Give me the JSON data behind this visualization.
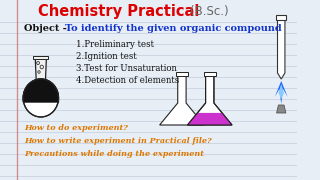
{
  "bg_color": "#e8eef5",
  "line_color": "#a8b8cc",
  "title_red": "Chemistry Practical",
  "title_bsc": "(B.Sc.)",
  "object_label": "Object - ",
  "object_text": "To identify the given organic compound",
  "list_items": [
    "1.Preliminary test",
    "2.Ignition test",
    "3.Test for Unsaturation",
    "4.Detection of elements"
  ],
  "bottom_lines": [
    "How to do experiment?",
    "How to write experiment in Practical file?",
    "Precautions while doing the experiment"
  ],
  "color_red": "#dd0000",
  "color_blue": "#1133cc",
  "color_dark": "#111111",
  "color_orange": "#dd7700",
  "color_gray_bsc": "#666666",
  "flask_left_liquid": "#111111",
  "flask_right_liquid": "#cc33cc",
  "tube_color": "#ffffff",
  "flame_blue": "#2266ff",
  "flame_light": "#88ccff"
}
